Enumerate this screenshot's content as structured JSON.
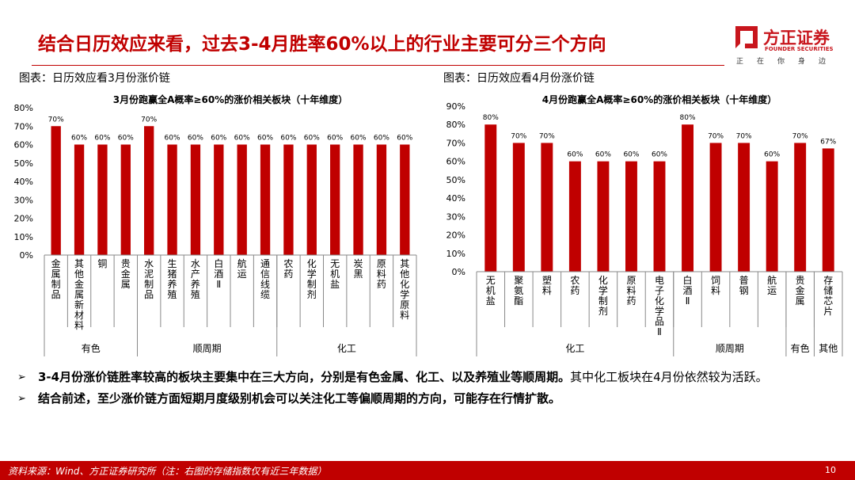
{
  "header": {
    "title": "结合日历效应来看，过去3-4月胜率60%以上的行业主要可分三个方向"
  },
  "logo": {
    "name": "方正证券",
    "en": "FOUNDER SECURITIES",
    "slogan": "正在你身边"
  },
  "captions": {
    "left": "图表：日历效应看3月份涨价链",
    "right": "图表：日历效应看4月份涨价链"
  },
  "colors": {
    "accent": "#c00000",
    "bar": "#c00000"
  },
  "chart_data": [
    {
      "type": "bar",
      "title": "3月份跑赢全A概率≥60%的涨价相关板块（十年维度）",
      "categories": [
        "金属制品",
        "其他金属新材料",
        "铜",
        "贵金属",
        "水泥制品",
        "生猪养殖",
        "水产养殖",
        "白酒Ⅱ",
        "航运",
        "通信线缆",
        "农药",
        "化学制剂",
        "无机盐",
        "炭黑",
        "原料药",
        "其他化学原料"
      ],
      "values": [
        70,
        60,
        60,
        60,
        70,
        60,
        60,
        60,
        60,
        60,
        60,
        60,
        60,
        60,
        60,
        60
      ],
      "value_labels": [
        "70%",
        "60%",
        "60%",
        "60%",
        "70%",
        "60%",
        "60%",
        "60%",
        "60%",
        "60%",
        "60%",
        "60%",
        "60%",
        "60%",
        "60%",
        "60%"
      ],
      "groups": [
        {
          "name": "有色",
          "count": 4
        },
        {
          "name": "顺周期",
          "count": 6
        },
        {
          "name": "化工",
          "count": 6
        }
      ],
      "ylim": [
        0,
        80
      ],
      "yticks": [
        "0%",
        "10%",
        "20%",
        "30%",
        "40%",
        "50%",
        "60%",
        "70%",
        "80%"
      ]
    },
    {
      "type": "bar",
      "title": "4月份跑赢全A概率≥60%的涨价相关板块（十年维度）",
      "categories": [
        "无机盐",
        "聚氨酯",
        "塑料",
        "农药",
        "化学制剂",
        "原料药",
        "电子化学品Ⅱ",
        "白酒Ⅱ",
        "饲料",
        "普钢",
        "航运",
        "贵金属",
        "存储芯片"
      ],
      "values": [
        80,
        70,
        70,
        60,
        60,
        60,
        60,
        80,
        70,
        70,
        60,
        70,
        67
      ],
      "value_labels": [
        "80%",
        "70%",
        "70%",
        "60%",
        "60%",
        "60%",
        "60%",
        "80%",
        "70%",
        "70%",
        "60%",
        "70%",
        "67%"
      ],
      "groups": [
        {
          "name": "化工",
          "count": 7
        },
        {
          "name": "顺周期",
          "count": 4
        },
        {
          "name": "有色",
          "count": 1
        },
        {
          "name": "其他",
          "count": 1
        }
      ],
      "ylim": [
        0,
        90
      ],
      "yticks": [
        "0%",
        "10%",
        "20%",
        "30%",
        "40%",
        "50%",
        "60%",
        "70%",
        "80%",
        "90%"
      ]
    }
  ],
  "bullets": [
    {
      "bold": "3-4月份涨价链胜率较高的板块主要集中在三大方向，分别是有色金属、化工、以及养殖业等顺周期。",
      "normal": "其中化工板块在4月份依然较为活跃。"
    },
    {
      "bold": "结合前述，至少涨价链方面短期月度级别机会可以关注化工等偏顺周期的方向，可能存在行情扩散。",
      "normal": ""
    }
  ],
  "footer": {
    "source": "资料来源：Wind、方正证券研究所（注：右图的存储指数仅有近三年数据）",
    "page": "10"
  }
}
